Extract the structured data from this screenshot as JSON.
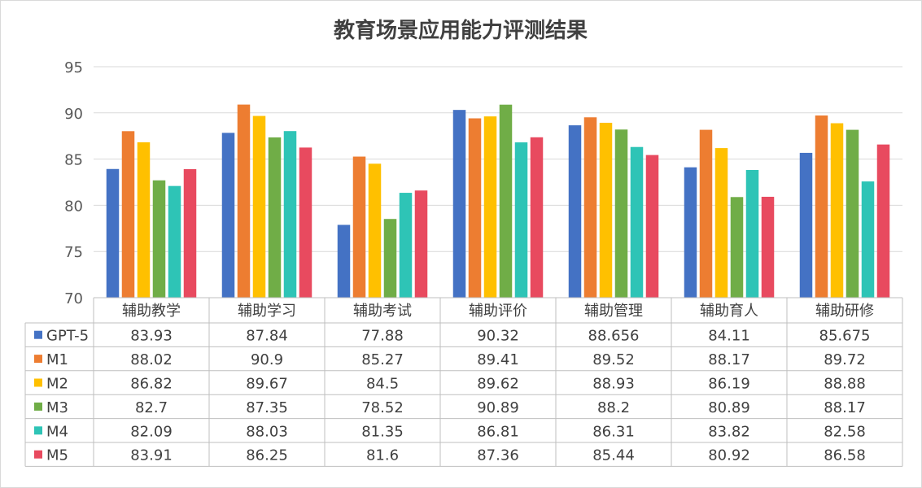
{
  "chart_data": {
    "type": "bar",
    "title": "教育场景应用能力评测结果",
    "xlabel": "",
    "ylabel": "",
    "ylim": [
      70,
      95
    ],
    "yticks": [
      70,
      75,
      80,
      85,
      90,
      95
    ],
    "grid": true,
    "legend": "data-table",
    "categories": [
      "辅助教学",
      "辅助学习",
      "辅助考试",
      "辅助评价",
      "辅助管理",
      "辅助育人",
      "辅助研修"
    ],
    "series": [
      {
        "name": "GPT-5",
        "color": "#4472C4",
        "values": [
          83.93,
          87.84,
          77.88,
          90.32,
          88.656,
          84.11,
          85.675
        ]
      },
      {
        "name": "M1",
        "color": "#ED7D31",
        "values": [
          88.02,
          90.9,
          85.27,
          89.41,
          89.52,
          88.17,
          89.72
        ]
      },
      {
        "name": "M2",
        "color": "#FFC000",
        "values": [
          86.82,
          89.67,
          84.5,
          89.62,
          88.93,
          86.19,
          88.88
        ]
      },
      {
        "name": "M3",
        "color": "#70AD47",
        "values": [
          82.7,
          87.35,
          78.52,
          90.89,
          88.2,
          80.89,
          88.17
        ]
      },
      {
        "name": "M4",
        "color": "#2EC4B6",
        "values": [
          82.09,
          88.03,
          81.35,
          86.81,
          86.31,
          83.82,
          82.58
        ]
      },
      {
        "name": "M5",
        "color": "#E84A5F",
        "values": [
          83.91,
          86.25,
          81.6,
          87.36,
          85.44,
          80.92,
          86.58
        ]
      }
    ]
  }
}
